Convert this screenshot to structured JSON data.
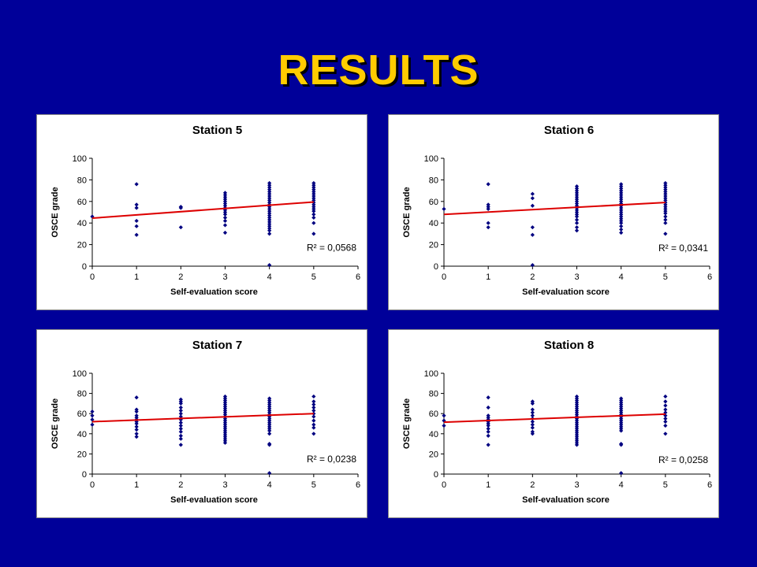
{
  "slide": {
    "title": "RESULTS"
  },
  "colors": {
    "background": "#000099",
    "title": "#ffcc00",
    "points": "#000080",
    "trendline": "#dd0000"
  },
  "chart_data": [
    {
      "type": "scatter",
      "title": "Station 5",
      "xlabel": "Self-evaluation score",
      "ylabel": "OSCE grade",
      "xlim": [
        0,
        6
      ],
      "ylim": [
        0,
        100
      ],
      "xticks": [
        "0",
        "1",
        "2",
        "3",
        "4",
        "5",
        "6"
      ],
      "yticks": [
        "0",
        "20",
        "40",
        "60",
        "80",
        "100"
      ],
      "r2_label": "R² = 0,0568",
      "trendline": {
        "intercept": 44.5,
        "slope": 3.0
      },
      "points": [
        [
          0,
          46
        ],
        [
          1,
          76
        ],
        [
          1,
          57
        ],
        [
          1,
          54
        ],
        [
          1,
          42
        ],
        [
          1,
          37
        ],
        [
          1,
          29
        ],
        [
          2,
          55
        ],
        [
          2,
          54
        ],
        [
          2,
          36
        ],
        [
          3,
          68
        ],
        [
          3,
          66
        ],
        [
          3,
          64
        ],
        [
          3,
          62
        ],
        [
          3,
          60
        ],
        [
          3,
          58
        ],
        [
          3,
          56
        ],
        [
          3,
          54
        ],
        [
          3,
          52
        ],
        [
          3,
          50
        ],
        [
          3,
          48
        ],
        [
          3,
          45
        ],
        [
          3,
          42
        ],
        [
          3,
          38
        ],
        [
          3,
          31
        ],
        [
          4,
          77
        ],
        [
          4,
          75
        ],
        [
          4,
          73
        ],
        [
          4,
          71
        ],
        [
          4,
          69
        ],
        [
          4,
          67
        ],
        [
          4,
          65
        ],
        [
          4,
          63
        ],
        [
          4,
          61
        ],
        [
          4,
          59
        ],
        [
          4,
          57
        ],
        [
          4,
          55
        ],
        [
          4,
          53
        ],
        [
          4,
          51
        ],
        [
          4,
          49
        ],
        [
          4,
          47
        ],
        [
          4,
          45
        ],
        [
          4,
          43
        ],
        [
          4,
          41
        ],
        [
          4,
          39
        ],
        [
          4,
          37
        ],
        [
          4,
          35
        ],
        [
          4,
          33
        ],
        [
          4,
          30
        ],
        [
          4,
          1
        ],
        [
          5,
          77
        ],
        [
          5,
          75
        ],
        [
          5,
          73
        ],
        [
          5,
          71
        ],
        [
          5,
          69
        ],
        [
          5,
          67
        ],
        [
          5,
          65
        ],
        [
          5,
          63
        ],
        [
          5,
          61
        ],
        [
          5,
          59
        ],
        [
          5,
          57
        ],
        [
          5,
          55
        ],
        [
          5,
          53
        ],
        [
          5,
          51
        ],
        [
          5,
          48
        ],
        [
          5,
          45
        ],
        [
          5,
          40
        ],
        [
          5,
          30
        ]
      ]
    },
    {
      "type": "scatter",
      "title": "Station 6",
      "xlabel": "Self-evaluation score",
      "ylabel": "OSCE grade",
      "xlim": [
        0,
        6
      ],
      "ylim": [
        0,
        100
      ],
      "xticks": [
        "0",
        "1",
        "2",
        "3",
        "4",
        "5",
        "6"
      ],
      "yticks": [
        "0",
        "20",
        "40",
        "60",
        "80",
        "100"
      ],
      "r2_label": "R² = 0,0341",
      "trendline": {
        "intercept": 48.0,
        "slope": 2.2
      },
      "points": [
        [
          0,
          53
        ],
        [
          1,
          76
        ],
        [
          1,
          57
        ],
        [
          1,
          55
        ],
        [
          1,
          53
        ],
        [
          1,
          40
        ],
        [
          1,
          36
        ],
        [
          2,
          67
        ],
        [
          2,
          63
        ],
        [
          2,
          56
        ],
        [
          2,
          36
        ],
        [
          2,
          29
        ],
        [
          2,
          1
        ],
        [
          3,
          74
        ],
        [
          3,
          72
        ],
        [
          3,
          70
        ],
        [
          3,
          68
        ],
        [
          3,
          66
        ],
        [
          3,
          64
        ],
        [
          3,
          62
        ],
        [
          3,
          60
        ],
        [
          3,
          58
        ],
        [
          3,
          56
        ],
        [
          3,
          54
        ],
        [
          3,
          52
        ],
        [
          3,
          50
        ],
        [
          3,
          48
        ],
        [
          3,
          46
        ],
        [
          3,
          43
        ],
        [
          3,
          40
        ],
        [
          3,
          36
        ],
        [
          3,
          33
        ],
        [
          4,
          76
        ],
        [
          4,
          74
        ],
        [
          4,
          72
        ],
        [
          4,
          70
        ],
        [
          4,
          68
        ],
        [
          4,
          66
        ],
        [
          4,
          64
        ],
        [
          4,
          62
        ],
        [
          4,
          60
        ],
        [
          4,
          58
        ],
        [
          4,
          56
        ],
        [
          4,
          54
        ],
        [
          4,
          52
        ],
        [
          4,
          50
        ],
        [
          4,
          48
        ],
        [
          4,
          46
        ],
        [
          4,
          44
        ],
        [
          4,
          42
        ],
        [
          4,
          40
        ],
        [
          4,
          37
        ],
        [
          4,
          34
        ],
        [
          4,
          31
        ],
        [
          5,
          77
        ],
        [
          5,
          75
        ],
        [
          5,
          73
        ],
        [
          5,
          71
        ],
        [
          5,
          69
        ],
        [
          5,
          67
        ],
        [
          5,
          65
        ],
        [
          5,
          63
        ],
        [
          5,
          61
        ],
        [
          5,
          59
        ],
        [
          5,
          57
        ],
        [
          5,
          55
        ],
        [
          5,
          53
        ],
        [
          5,
          51
        ],
        [
          5,
          49
        ],
        [
          5,
          46
        ],
        [
          5,
          43
        ],
        [
          5,
          40
        ],
        [
          5,
          30
        ]
      ]
    },
    {
      "type": "scatter",
      "title": "Station 7",
      "xlabel": "Self-evaluation score",
      "ylabel": "OSCE grade",
      "xlim": [
        0,
        6
      ],
      "ylim": [
        0,
        100
      ],
      "xticks": [
        "0",
        "1",
        "2",
        "3",
        "4",
        "5",
        "6"
      ],
      "yticks": [
        "0",
        "20",
        "40",
        "60",
        "80",
        "100"
      ],
      "r2_label": "R² = 0,0238",
      "trendline": {
        "intercept": 52.0,
        "slope": 1.6
      },
      "points": [
        [
          0,
          62
        ],
        [
          0,
          58
        ],
        [
          0,
          54
        ],
        [
          0,
          49
        ],
        [
          1,
          76
        ],
        [
          1,
          64
        ],
        [
          1,
          62
        ],
        [
          1,
          58
        ],
        [
          1,
          56
        ],
        [
          1,
          54
        ],
        [
          1,
          52
        ],
        [
          1,
          50
        ],
        [
          1,
          47
        ],
        [
          1,
          44
        ],
        [
          1,
          40
        ],
        [
          1,
          37
        ],
        [
          2,
          74
        ],
        [
          2,
          72
        ],
        [
          2,
          70
        ],
        [
          2,
          66
        ],
        [
          2,
          63
        ],
        [
          2,
          60
        ],
        [
          2,
          57
        ],
        [
          2,
          54
        ],
        [
          2,
          51
        ],
        [
          2,
          48
        ],
        [
          2,
          45
        ],
        [
          2,
          42
        ],
        [
          2,
          38
        ],
        [
          2,
          35
        ],
        [
          2,
          29
        ],
        [
          3,
          77
        ],
        [
          3,
          75
        ],
        [
          3,
          73
        ],
        [
          3,
          71
        ],
        [
          3,
          69
        ],
        [
          3,
          67
        ],
        [
          3,
          65
        ],
        [
          3,
          63
        ],
        [
          3,
          61
        ],
        [
          3,
          59
        ],
        [
          3,
          57
        ],
        [
          3,
          55
        ],
        [
          3,
          53
        ],
        [
          3,
          51
        ],
        [
          3,
          49
        ],
        [
          3,
          47
        ],
        [
          3,
          45
        ],
        [
          3,
          43
        ],
        [
          3,
          41
        ],
        [
          3,
          39
        ],
        [
          3,
          37
        ],
        [
          3,
          35
        ],
        [
          3,
          33
        ],
        [
          3,
          31
        ],
        [
          4,
          75
        ],
        [
          4,
          73
        ],
        [
          4,
          71
        ],
        [
          4,
          69
        ],
        [
          4,
          67
        ],
        [
          4,
          65
        ],
        [
          4,
          63
        ],
        [
          4,
          61
        ],
        [
          4,
          59
        ],
        [
          4,
          57
        ],
        [
          4,
          55
        ],
        [
          4,
          53
        ],
        [
          4,
          51
        ],
        [
          4,
          49
        ],
        [
          4,
          47
        ],
        [
          4,
          45
        ],
        [
          4,
          43
        ],
        [
          4,
          40
        ],
        [
          4,
          30
        ],
        [
          4,
          29
        ],
        [
          4,
          1
        ],
        [
          5,
          77
        ],
        [
          5,
          72
        ],
        [
          5,
          69
        ],
        [
          5,
          66
        ],
        [
          5,
          63
        ],
        [
          5,
          60
        ],
        [
          5,
          57
        ],
        [
          5,
          53
        ],
        [
          5,
          49
        ],
        [
          5,
          46
        ],
        [
          5,
          40
        ]
      ]
    },
    {
      "type": "scatter",
      "title": "Station 8",
      "xlabel": "Self-evaluation score",
      "ylabel": "OSCE grade",
      "xlim": [
        0,
        6
      ],
      "ylim": [
        0,
        100
      ],
      "xticks": [
        "0",
        "1",
        "2",
        "3",
        "4",
        "5",
        "6"
      ],
      "yticks": [
        "0",
        "20",
        "40",
        "60",
        "80",
        "100"
      ],
      "r2_label": "R² = 0,0258",
      "trendline": {
        "intercept": 51.5,
        "slope": 1.6
      },
      "points": [
        [
          0,
          58
        ],
        [
          0,
          53
        ],
        [
          0,
          48
        ],
        [
          1,
          76
        ],
        [
          1,
          66
        ],
        [
          1,
          58
        ],
        [
          1,
          56
        ],
        [
          1,
          54
        ],
        [
          1,
          52
        ],
        [
          1,
          50
        ],
        [
          1,
          48
        ],
        [
          1,
          45
        ],
        [
          1,
          42
        ],
        [
          1,
          38
        ],
        [
          1,
          29
        ],
        [
          2,
          72
        ],
        [
          2,
          70
        ],
        [
          2,
          64
        ],
        [
          2,
          61
        ],
        [
          2,
          58
        ],
        [
          2,
          55
        ],
        [
          2,
          52
        ],
        [
          2,
          49
        ],
        [
          2,
          46
        ],
        [
          2,
          42
        ],
        [
          2,
          40
        ],
        [
          3,
          77
        ],
        [
          3,
          75
        ],
        [
          3,
          73
        ],
        [
          3,
          71
        ],
        [
          3,
          69
        ],
        [
          3,
          67
        ],
        [
          3,
          65
        ],
        [
          3,
          63
        ],
        [
          3,
          61
        ],
        [
          3,
          59
        ],
        [
          3,
          57
        ],
        [
          3,
          55
        ],
        [
          3,
          53
        ],
        [
          3,
          51
        ],
        [
          3,
          49
        ],
        [
          3,
          47
        ],
        [
          3,
          45
        ],
        [
          3,
          43
        ],
        [
          3,
          41
        ],
        [
          3,
          39
        ],
        [
          3,
          37
        ],
        [
          3,
          35
        ],
        [
          3,
          33
        ],
        [
          3,
          31
        ],
        [
          3,
          29
        ],
        [
          4,
          75
        ],
        [
          4,
          73
        ],
        [
          4,
          71
        ],
        [
          4,
          69
        ],
        [
          4,
          67
        ],
        [
          4,
          65
        ],
        [
          4,
          63
        ],
        [
          4,
          61
        ],
        [
          4,
          59
        ],
        [
          4,
          57
        ],
        [
          4,
          55
        ],
        [
          4,
          53
        ],
        [
          4,
          51
        ],
        [
          4,
          49
        ],
        [
          4,
          47
        ],
        [
          4,
          45
        ],
        [
          4,
          43
        ],
        [
          4,
          30
        ],
        [
          4,
          29
        ],
        [
          4,
          1
        ],
        [
          5,
          77
        ],
        [
          5,
          72
        ],
        [
          5,
          68
        ],
        [
          5,
          64
        ],
        [
          5,
          61
        ],
        [
          5,
          58
        ],
        [
          5,
          55
        ],
        [
          5,
          52
        ],
        [
          5,
          48
        ],
        [
          5,
          40
        ]
      ]
    }
  ]
}
